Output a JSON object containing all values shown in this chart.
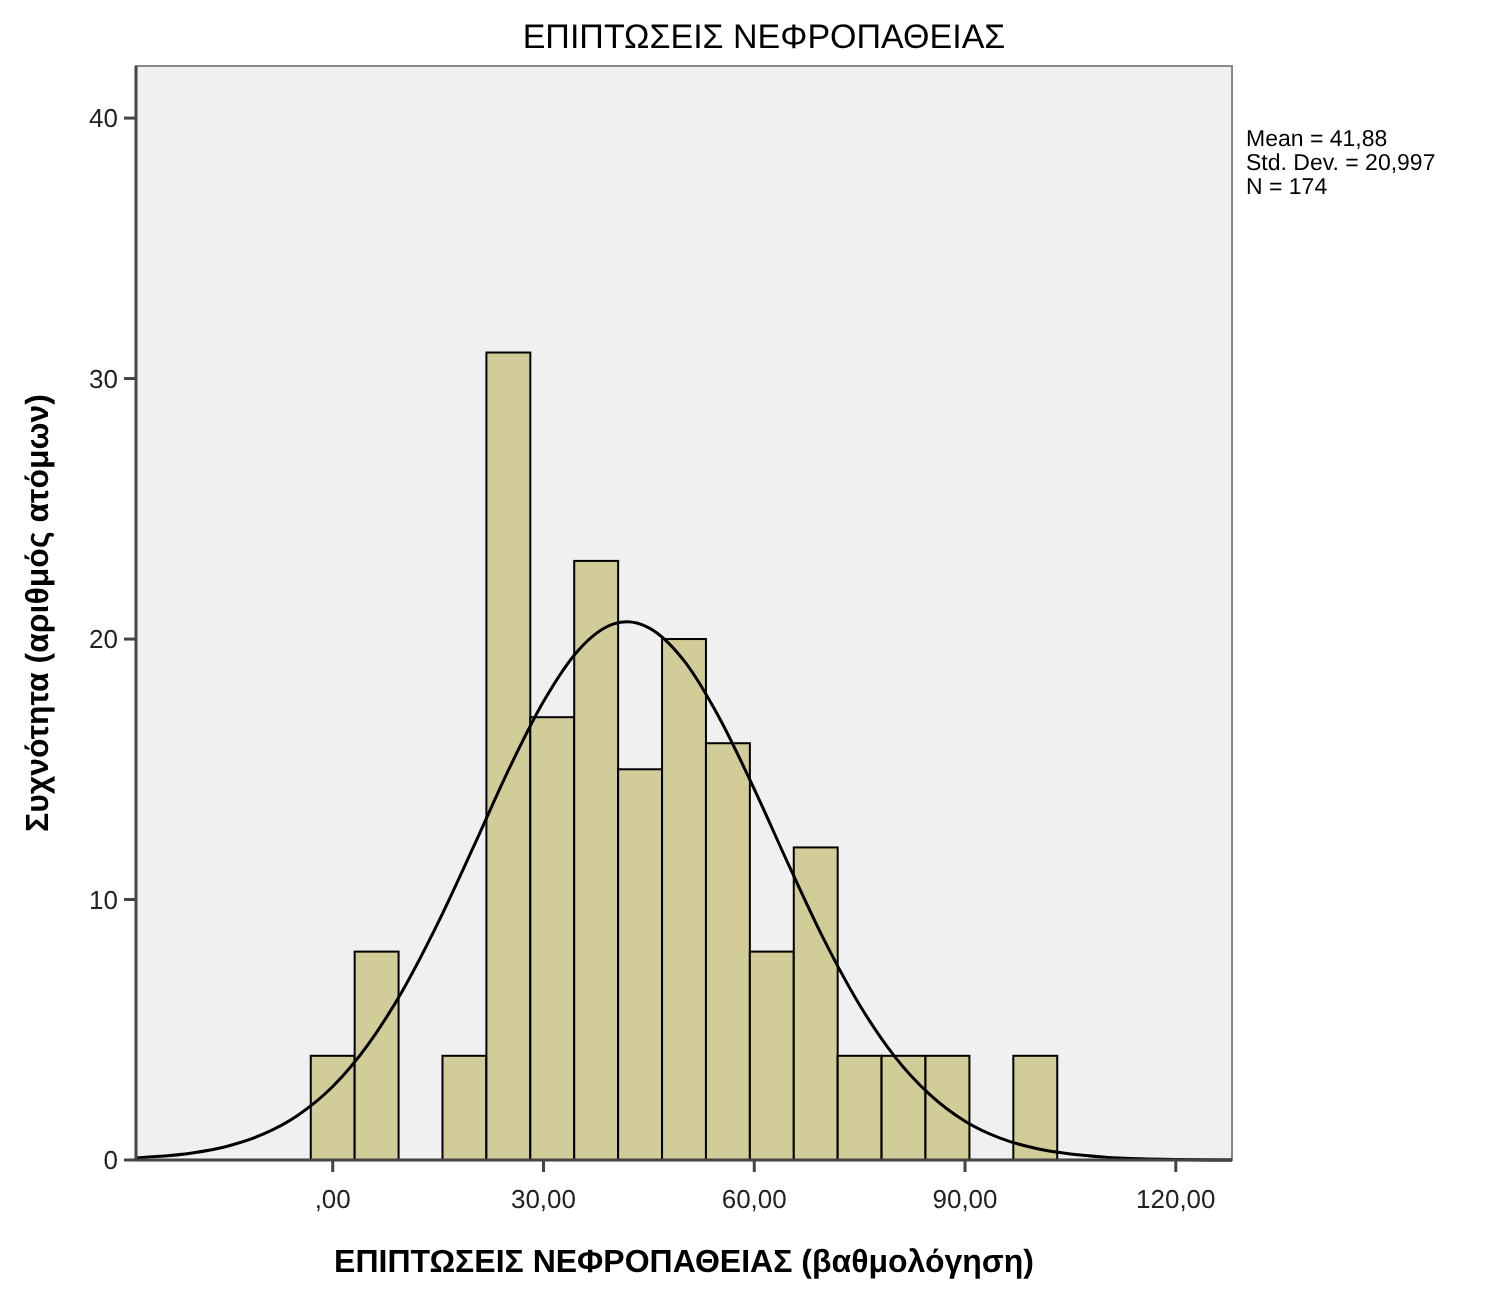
{
  "chart_data": {
    "type": "histogram",
    "title": "ΕΠΙΠΤΩΣΕΙΣ ΝΕΦΡΟΠΑΘΕΙΑΣ",
    "xlabel": "ΕΠΙΠΤΩΣΕΙΣ ΝΕΦΡΟΠΑΘΕΙΑΣ (βαθμολόγηση)",
    "ylabel": "Συχνότητα (αριθμός ατόμων)",
    "annotations": [
      "Mean = 41,88",
      "Std. Dev. = 20,997",
      "N = 174"
    ],
    "xlim": [
      -28,
      128
    ],
    "ylim": [
      0,
      42
    ],
    "xticks": [
      {
        "value": 0,
        "label": ",00"
      },
      {
        "value": 30,
        "label": "30,00"
      },
      {
        "value": 60,
        "label": "60,00"
      },
      {
        "value": 90,
        "label": "90,00"
      },
      {
        "value": 120,
        "label": "120,00"
      }
    ],
    "yticks": [
      0,
      10,
      20,
      30,
      40
    ],
    "grid": false,
    "series": [
      {
        "color": "#d2cc98",
        "bins": [
          -3.125,
          3.125,
          9.375,
          15.625,
          21.875,
          28.125,
          34.375,
          40.625,
          46.875,
          53.125,
          59.375,
          65.625,
          71.875,
          78.125,
          84.375,
          90.625,
          96.875,
          103.125
        ],
        "values": [
          4,
          8,
          0,
          4,
          31,
          17,
          23,
          15,
          20,
          16,
          8,
          12,
          4,
          4,
          4,
          0,
          4
        ]
      },
      {
        "type": "line",
        "color": "#000000",
        "x": [
          -28,
          -25,
          -20,
          -15,
          -10,
          -5,
          0,
          5,
          10,
          15,
          20,
          25,
          30,
          35,
          40,
          41.88,
          45,
          50,
          55,
          60,
          65,
          70,
          75,
          80,
          85,
          90,
          95,
          100,
          105,
          110,
          115,
          120,
          128
        ],
        "values": [
          0.08,
          0.13,
          0.27,
          0.53,
          0.98,
          1.71,
          2.82,
          4.42,
          6.53,
          9.11,
          12.0,
          14.96,
          17.6,
          19.58,
          20.58,
          20.66,
          20.43,
          19.17,
          16.99,
          14.24,
          11.27,
          8.42,
          5.95,
          3.97,
          2.51,
          1.49,
          0.84,
          0.45,
          0.23,
          0.11,
          0.05,
          0.02,
          0.0
        ]
      }
    ]
  }
}
